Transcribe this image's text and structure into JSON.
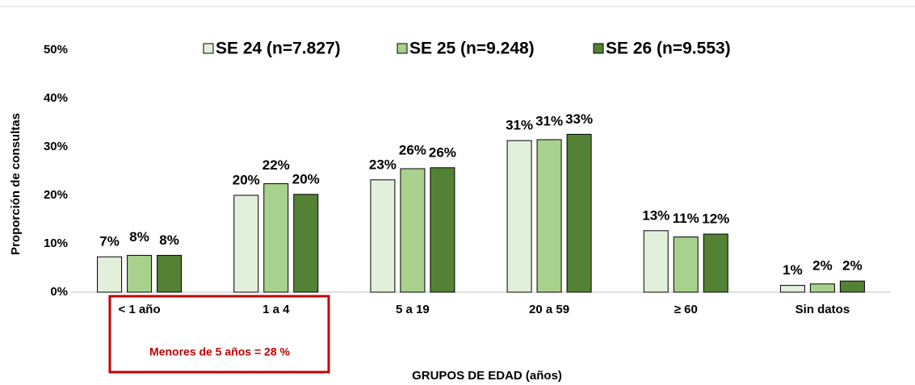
{
  "chart_data": {
    "type": "bar",
    "categories": [
      "< 1 año",
      "1 a 4",
      "5 a 19",
      "20 a 59",
      "≥ 60",
      "Sin datos"
    ],
    "series": [
      {
        "name": "SE 24 (n=7.827)",
        "color": "#e2efda",
        "values": [
          7.3,
          20.0,
          23.2,
          31.3,
          12.7,
          1.4
        ],
        "value_labels": [
          "7%",
          "20%",
          "23%",
          "31%",
          "13%",
          "1%"
        ]
      },
      {
        "name": "SE 25 (n=9.248)",
        "color": "#a9d18e",
        "values": [
          7.6,
          22.4,
          25.5,
          31.5,
          11.4,
          1.7
        ],
        "value_labels": [
          "8%",
          "22%",
          "26%",
          "31%",
          "11%",
          "2%"
        ]
      },
      {
        "name": "SE 26 (n=9.553)",
        "color": "#548235",
        "values": [
          7.6,
          20.2,
          25.7,
          32.6,
          12.0,
          2.3
        ],
        "value_labels": [
          "8%",
          "20%",
          "26%",
          "33%",
          "12%",
          "2%"
        ]
      }
    ],
    "ylim": [
      0,
      50
    ],
    "yticks": [
      {
        "value": 0,
        "label": "0%"
      },
      {
        "value": 10,
        "label": "10%"
      },
      {
        "value": 20,
        "label": "20%"
      },
      {
        "value": 30,
        "label": "30%"
      },
      {
        "value": 40,
        "label": "40%"
      },
      {
        "value": 50,
        "label": "50%"
      }
    ],
    "y_label": "Proporción  de consultas",
    "x_label": "GRUPOS DE EDAD (años)",
    "annotation": "Menores de 5 años = 28 %",
    "legend": "top"
  }
}
